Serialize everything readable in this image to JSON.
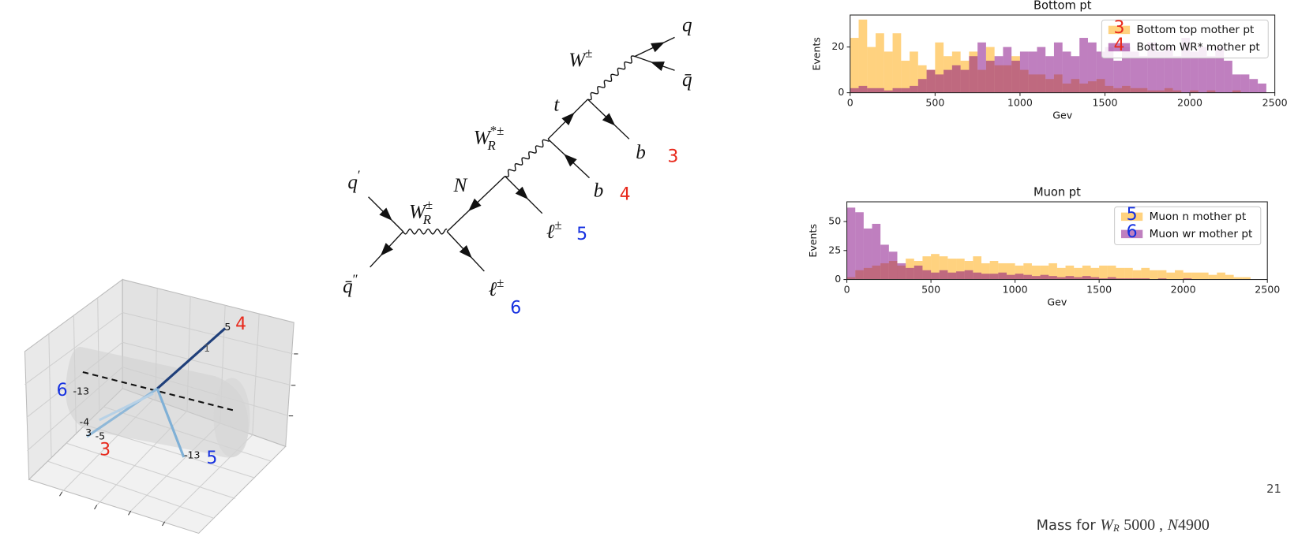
{
  "chart_data": [
    {
      "type": "histogram",
      "title": "Bottom pt",
      "xlabel": "Gev",
      "ylabel": "Events",
      "bins": [
        0,
        50,
        100,
        150,
        200,
        250,
        300,
        350,
        400,
        450,
        500,
        550,
        600,
        650,
        700,
        750,
        800,
        850,
        900,
        950,
        1000,
        1050,
        1100,
        1150,
        1200,
        1250,
        1300,
        1350,
        1400,
        1450,
        1500,
        1550,
        1600,
        1650,
        1700,
        1750,
        1800,
        1850,
        1900,
        1950,
        2000,
        2050,
        2100,
        2150,
        2200,
        2250,
        2300,
        2350,
        2400,
        2450,
        2500
      ],
      "series": [
        {
          "name": "Bottom top mother pt",
          "color": "#ffa500",
          "values": [
            24,
            32,
            20,
            26,
            18,
            26,
            14,
            18,
            12,
            10,
            22,
            16,
            18,
            14,
            18,
            10,
            20,
            12,
            12,
            16,
            10,
            8,
            8,
            6,
            8,
            4,
            6,
            4,
            5,
            6,
            3,
            2,
            3,
            2,
            2,
            1,
            1,
            2,
            1,
            0,
            1,
            0,
            1,
            0,
            0,
            1,
            0,
            0,
            0,
            0
          ]
        },
        {
          "name": "Bottom WR* mother pt",
          "color": "#800080",
          "values": [
            2,
            3,
            2,
            2,
            1,
            2,
            2,
            3,
            6,
            10,
            8,
            10,
            12,
            10,
            16,
            22,
            14,
            16,
            20,
            14,
            18,
            18,
            20,
            16,
            22,
            18,
            16,
            24,
            22,
            18,
            20,
            14,
            20,
            18,
            16,
            22,
            18,
            20,
            16,
            24,
            18,
            20,
            16,
            20,
            14,
            8,
            8,
            6,
            4,
            0
          ]
        }
      ],
      "xlim": [
        0,
        2500
      ],
      "ylim": [
        0,
        34
      ],
      "xticks": [
        0,
        500,
        1000,
        1500,
        2000,
        2500
      ],
      "yticks": [
        0,
        20
      ],
      "legend": "upper right",
      "annotations": [
        {
          "text": "3",
          "color": "#e8291c"
        },
        {
          "text": "4",
          "color": "#e8291c"
        }
      ]
    },
    {
      "type": "histogram",
      "title": "Muon pt",
      "xlabel": "Gev",
      "ylabel": "Events",
      "bins": [
        0,
        50,
        100,
        150,
        200,
        250,
        300,
        350,
        400,
        450,
        500,
        550,
        600,
        650,
        700,
        750,
        800,
        850,
        900,
        950,
        1000,
        1050,
        1100,
        1150,
        1200,
        1250,
        1300,
        1350,
        1400,
        1450,
        1500,
        1550,
        1600,
        1650,
        1700,
        1750,
        1800,
        1850,
        1900,
        1950,
        2000,
        2050,
        2100,
        2150,
        2200,
        2250,
        2300,
        2350,
        2400,
        2450,
        2500
      ],
      "series": [
        {
          "name": "Muon n mother pt",
          "color": "#ffa500",
          "values": [
            2,
            8,
            10,
            12,
            14,
            16,
            12,
            18,
            16,
            20,
            22,
            20,
            18,
            18,
            16,
            20,
            14,
            16,
            14,
            14,
            12,
            14,
            12,
            12,
            14,
            10,
            12,
            10,
            12,
            10,
            12,
            12,
            10,
            10,
            8,
            10,
            8,
            8,
            6,
            8,
            6,
            6,
            6,
            4,
            6,
            4,
            2,
            2,
            0,
            0
          ]
        },
        {
          "name": "Muon wr mother pt",
          "color": "#800080",
          "values": [
            62,
            58,
            44,
            48,
            30,
            24,
            14,
            10,
            12,
            8,
            6,
            8,
            6,
            7,
            8,
            6,
            5,
            5,
            6,
            4,
            5,
            4,
            3,
            4,
            3,
            2,
            3,
            2,
            3,
            2,
            1,
            2,
            1,
            1,
            1,
            1,
            0,
            1,
            0,
            0,
            1,
            0,
            0,
            0,
            0,
            0,
            0,
            0,
            0,
            0
          ]
        }
      ],
      "xlim": [
        0,
        2500
      ],
      "ylim": [
        0,
        67
      ],
      "xticks": [
        0,
        500,
        1000,
        1500,
        2000,
        2500
      ],
      "yticks": [
        0,
        25,
        50
      ],
      "legend": "upper right",
      "annotations": [
        {
          "text": "5",
          "color": "#1530e0"
        },
        {
          "text": "6",
          "color": "#1530e0"
        }
      ]
    }
  ],
  "feynman": {
    "labels": [
      {
        "base": "q",
        "sup": "′"
      },
      {
        "base": "q̄",
        "sup": "″"
      },
      {
        "base": "W",
        "sup": "±",
        "sub": "R"
      },
      {
        "base": "N"
      },
      {
        "base": "W",
        "sup": "*±",
        "sub": "R"
      },
      {
        "base": "t"
      },
      {
        "base": "W",
        "sup": "±"
      },
      {
        "base": "ℓ",
        "sup": "±"
      },
      {
        "base": "ℓ",
        "sup": "±"
      },
      {
        "base": "b"
      },
      {
        "base": "b"
      },
      {
        "base": "q"
      },
      {
        "base": "q̄"
      }
    ],
    "tags": [
      {
        "text": "3",
        "color": "#e8291c"
      },
      {
        "text": "4",
        "color": "#e8291c"
      },
      {
        "text": "5",
        "color": "#1530e0"
      },
      {
        "text": "6",
        "color": "#1530e0"
      }
    ]
  },
  "event_display": {
    "labels": [
      {
        "text": "5",
        "color": "#111111"
      },
      {
        "text": "4",
        "color": "#e8291c"
      },
      {
        "text": "1",
        "color": "#555555"
      },
      {
        "text": "6",
        "color": "#1530e0"
      },
      {
        "text": "-13",
        "color": "#111111"
      },
      {
        "text": "-4",
        "color": "#111111"
      },
      {
        "text": "3",
        "color": "#111111"
      },
      {
        "text": "-5",
        "color": "#111111"
      },
      {
        "text": "3",
        "color": "#e8291c"
      },
      {
        "text": "-13",
        "color": "#111111"
      },
      {
        "text": "5",
        "color": "#1530e0"
      }
    ]
  },
  "footer": {
    "prefix": "Mass for",
    "w_symbol": "W",
    "w_sub": "R",
    "w_value": "5000 ,",
    "n_symbol": "N",
    "n_value": "4900"
  },
  "page_number": "21"
}
